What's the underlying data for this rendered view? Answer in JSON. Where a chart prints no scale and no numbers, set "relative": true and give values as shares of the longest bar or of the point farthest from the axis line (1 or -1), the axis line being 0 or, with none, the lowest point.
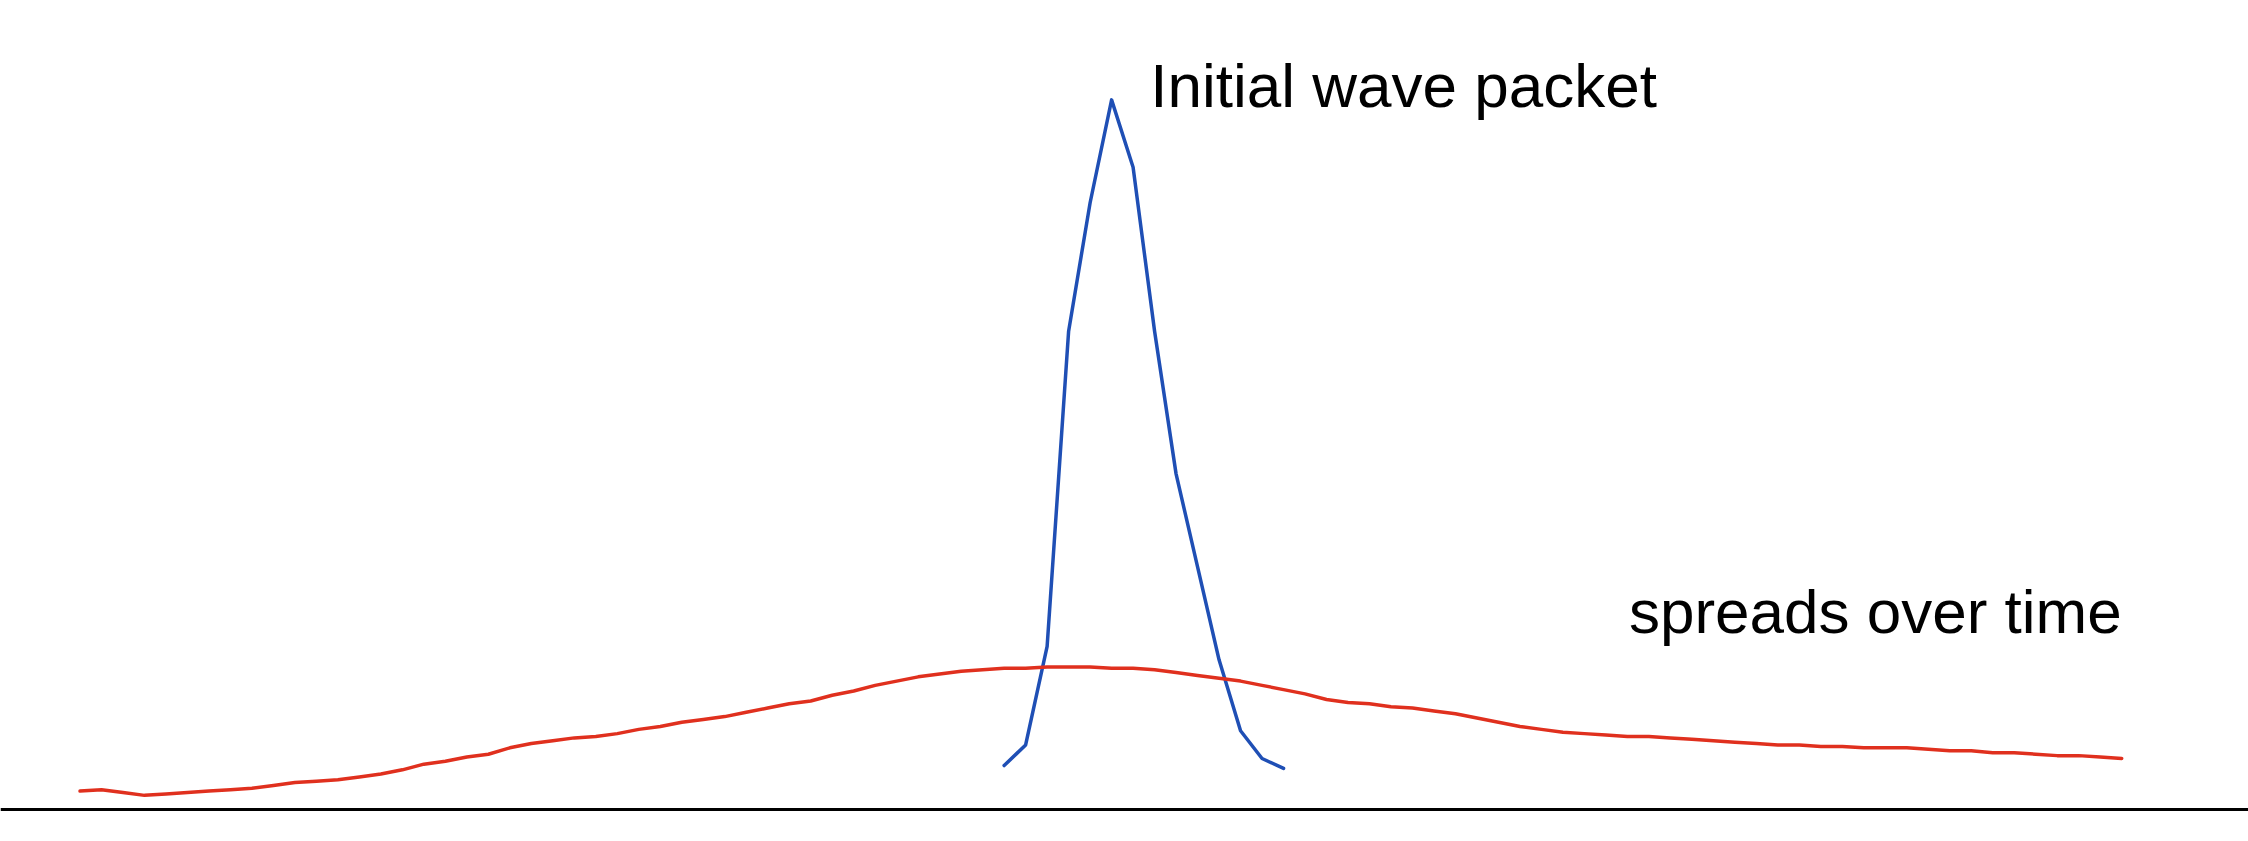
{
  "chart_data": {
    "type": "line",
    "relative": true,
    "grid": false,
    "marker": "none",
    "line_style": "solid",
    "categories": [
      null,
      null,
      null,
      null,
      null,
      null,
      null,
      null,
      null,
      null,
      null,
      null,
      null,
      null,
      null,
      null,
      null,
      null,
      null,
      null,
      null,
      null,
      null,
      null,
      null,
      null,
      null,
      null,
      null,
      null,
      null,
      null,
      null,
      null,
      null,
      null,
      null,
      null,
      null,
      null,
      null,
      null,
      null,
      null,
      null,
      null,
      null,
      null,
      null,
      null,
      null,
      null,
      null,
      null,
      null,
      null,
      null,
      null,
      null,
      null,
      null,
      null,
      null,
      null,
      null,
      null,
      null,
      null,
      null,
      null,
      null,
      null,
      null,
      null,
      null,
      null,
      null,
      null,
      null,
      null,
      null,
      null,
      null,
      null,
      null,
      null,
      null,
      null,
      null,
      null,
      null,
      null,
      null,
      null,
      null,
      null
    ],
    "series": [
      {
        "color": "#1f4fb5",
        "values": [
          null,
          null,
          null,
          null,
          null,
          null,
          null,
          null,
          null,
          null,
          null,
          null,
          null,
          null,
          null,
          null,
          null,
          null,
          null,
          null,
          null,
          null,
          null,
          null,
          null,
          null,
          null,
          null,
          null,
          null,
          null,
          null,
          null,
          null,
          null,
          null,
          null,
          null,
          null,
          null,
          null,
          null,
          null,
          0.062,
          0.091,
          0.23,
          0.674,
          0.855,
          1.0,
          0.905,
          0.674,
          0.473,
          0.342,
          0.211,
          0.111,
          0.072,
          0.058,
          null,
          null,
          null,
          null,
          null,
          null,
          null,
          null,
          null,
          null,
          null,
          null,
          null,
          null,
          null,
          null,
          null,
          null,
          null,
          null,
          null,
          null,
          null,
          null,
          null,
          null,
          null,
          null,
          null,
          null,
          null,
          null,
          null,
          null,
          null,
          null,
          null,
          null,
          null
        ]
      },
      {
        "color": "#e0301e",
        "values": [
          0.026,
          0.028,
          0.024,
          0.02,
          0.022,
          0.024,
          0.026,
          0.028,
          0.03,
          0.034,
          0.038,
          0.04,
          0.042,
          0.046,
          0.05,
          0.056,
          0.064,
          0.068,
          0.074,
          0.078,
          0.087,
          0.093,
          0.097,
          0.101,
          0.103,
          0.107,
          0.113,
          0.117,
          0.123,
          0.127,
          0.131,
          0.137,
          0.143,
          0.149,
          0.153,
          0.161,
          0.167,
          0.175,
          0.181,
          0.187,
          0.191,
          0.195,
          0.197,
          0.199,
          0.199,
          0.201,
          0.201,
          0.201,
          0.199,
          0.199,
          0.197,
          0.193,
          0.189,
          0.185,
          0.181,
          0.175,
          0.169,
          0.163,
          0.155,
          0.151,
          0.149,
          0.145,
          0.143,
          0.139,
          0.135,
          0.129,
          0.123,
          0.117,
          0.113,
          0.109,
          0.107,
          0.105,
          0.103,
          0.103,
          0.101,
          0.099,
          0.097,
          0.095,
          0.093,
          0.091,
          0.091,
          0.089,
          0.089,
          0.087,
          0.087,
          0.087,
          0.085,
          0.083,
          0.083,
          0.08,
          0.08,
          0.078,
          0.076,
          0.076,
          0.074,
          0.072
        ]
      }
    ],
    "annotations": [
      "Initial wave packet",
      "spreads over time"
    ]
  }
}
